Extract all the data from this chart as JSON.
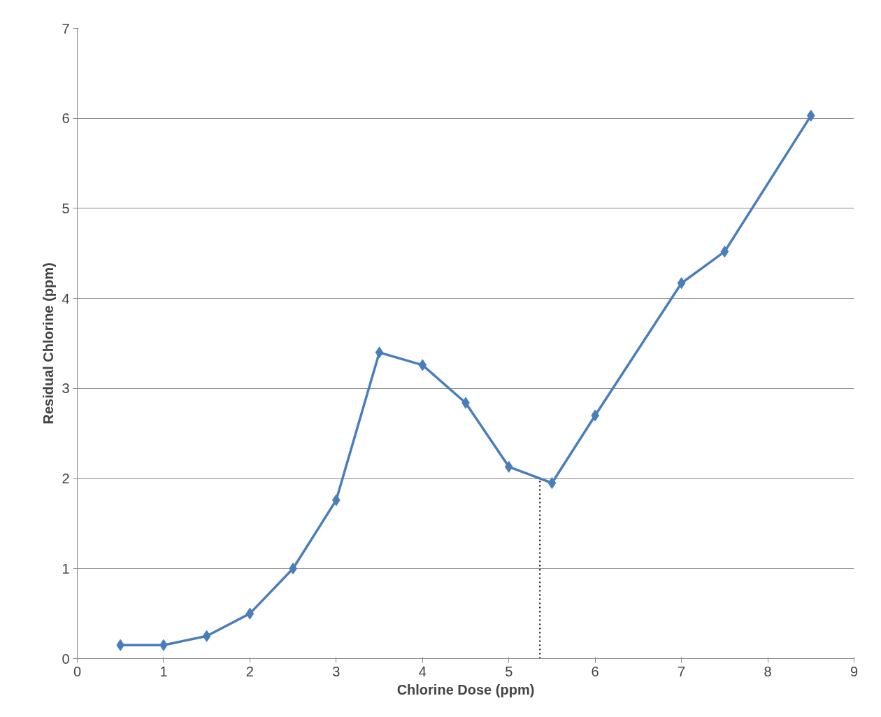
{
  "chart_data": {
    "type": "line",
    "xlabel": "Chlorine Dose (ppm)",
    "ylabel": "Residual Chlorine (ppm)",
    "x": [
      0.5,
      1,
      1.5,
      2,
      2.5,
      3,
      3.5,
      4,
      4.5,
      5,
      5.5,
      6,
      7,
      7.5,
      8.5
    ],
    "series": [
      {
        "color": "#4a7ebb",
        "values": [
          0.15,
          0.15,
          0.25,
          0.5,
          1.0,
          1.76,
          3.4,
          3.26,
          2.84,
          2.13,
          1.95,
          2.7,
          4.17,
          4.52,
          6.03
        ]
      }
    ],
    "xlim": [
      0,
      9
    ],
    "xticks": [
      0,
      1,
      2,
      3,
      4,
      5,
      6,
      7,
      8,
      9
    ],
    "ylim": [
      0,
      7
    ],
    "yticks": [
      0,
      1,
      2,
      3,
      4,
      5,
      6,
      7
    ],
    "ref_lines": [
      {
        "axis": "x",
        "value": 5.36,
        "color": "#000000",
        "line_style": "dotted"
      }
    ],
    "grid": "y",
    "marker": "diamond",
    "line_style": "solid"
  }
}
